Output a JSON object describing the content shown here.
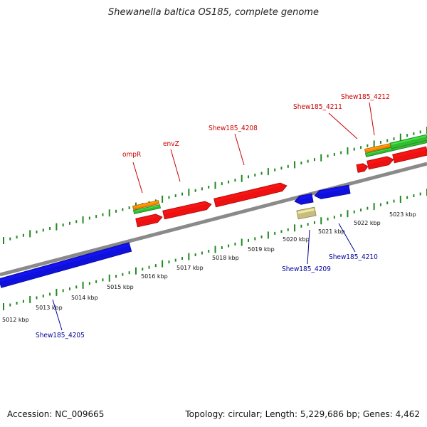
{
  "title": "Shewanella baltica OS185, complete genome",
  "footer": {
    "accession": "Accession: NC_009665",
    "summary": "Topology: circular; Length: 5,229,686 bp; Genes: 4,462"
  },
  "colors": {
    "backbone": "#8a8a8a",
    "forward_gene": "#ee1111",
    "reverse_gene": "#1010dd",
    "other_feature": "#c8bd80",
    "orange_track": "#ff8800",
    "green_track": "#33bb33",
    "tick": "#228822",
    "label_forward": "#cc0000",
    "label_reverse": "#000099"
  },
  "scale": {
    "ticks": [
      {
        "label": "5012 kbp"
      },
      {
        "label": "5013 kbp"
      },
      {
        "label": "5014 kbp"
      },
      {
        "label": "5015 kbp"
      },
      {
        "label": "5016 kbp"
      },
      {
        "label": "5017 kbp"
      },
      {
        "label": "5018 kbp"
      },
      {
        "label": "5019 kbp"
      },
      {
        "label": "5020 kbp"
      },
      {
        "label": "5021 kbp"
      },
      {
        "label": "5022 kbp"
      },
      {
        "label": "5023 kbp"
      }
    ]
  },
  "labels": {
    "forward": [
      "ompR",
      "envZ",
      "Shew185_4208",
      "Shew185_4211",
      "Shew185_4212"
    ],
    "reverse": [
      "Shew185_4205",
      "Shew185_4209",
      "Shew185_4210"
    ]
  }
}
